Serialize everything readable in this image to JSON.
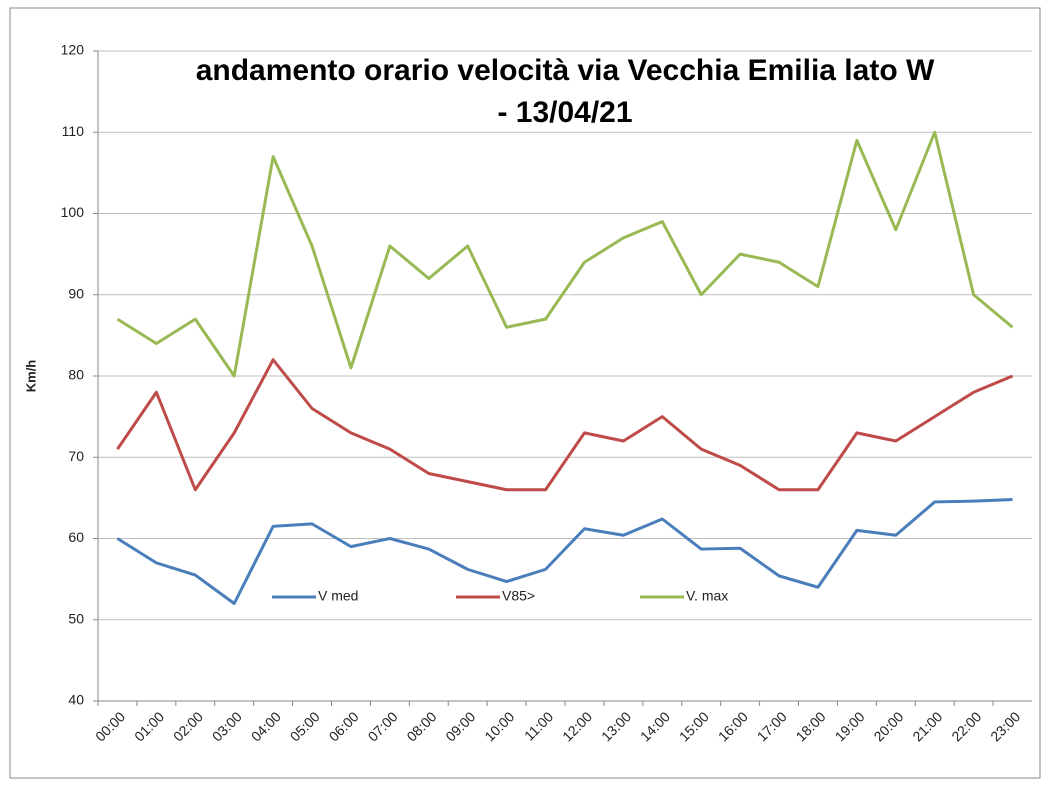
{
  "chart_data": {
    "type": "line",
    "title": [
      "andamento orario velocità via Vecchia Emilia lato W",
      "- 13/04/21"
    ],
    "y_label": "Km/h",
    "categories": [
      "00:00",
      "01:00",
      "02:00",
      "03:00",
      "04:00",
      "05:00",
      "06:00",
      "07:00",
      "08:00",
      "09:00",
      "10:00",
      "11:00",
      "12:00",
      "13:00",
      "14:00",
      "15:00",
      "16:00",
      "17:00",
      "18:00",
      "19:00",
      "20:00",
      "21:00",
      "22:00",
      "23:00"
    ],
    "series": [
      {
        "name": "V med",
        "color": "#4a7ebb",
        "values": [
          60,
          57,
          55.5,
          52,
          61.5,
          61.8,
          59,
          60,
          58.7,
          56.2,
          54.7,
          56.2,
          61.2,
          60.4,
          62.4,
          58.7,
          58.8,
          55.4,
          54,
          61,
          60.4,
          64.5,
          64.6,
          64.8
        ]
      },
      {
        "name": "V85>",
        "color": "#be4b48",
        "values": [
          71,
          78,
          66,
          73,
          82,
          76,
          73,
          71,
          68,
          67,
          66,
          66,
          73,
          72,
          75,
          71,
          69,
          66,
          66,
          73,
          72,
          75,
          78,
          80
        ]
      },
      {
        "name": "V. max",
        "color": "#98b954",
        "values": [
          87,
          84,
          87,
          80,
          107,
          96,
          81,
          96,
          92,
          96,
          86,
          87,
          94,
          97,
          99,
          90,
          95,
          94,
          91,
          109,
          98,
          110,
          90,
          86
        ]
      }
    ],
    "ylim": [
      40,
      120
    ],
    "yticks": [
      40,
      50,
      60,
      70,
      80,
      90,
      100,
      110,
      120
    ],
    "grid": true
  }
}
